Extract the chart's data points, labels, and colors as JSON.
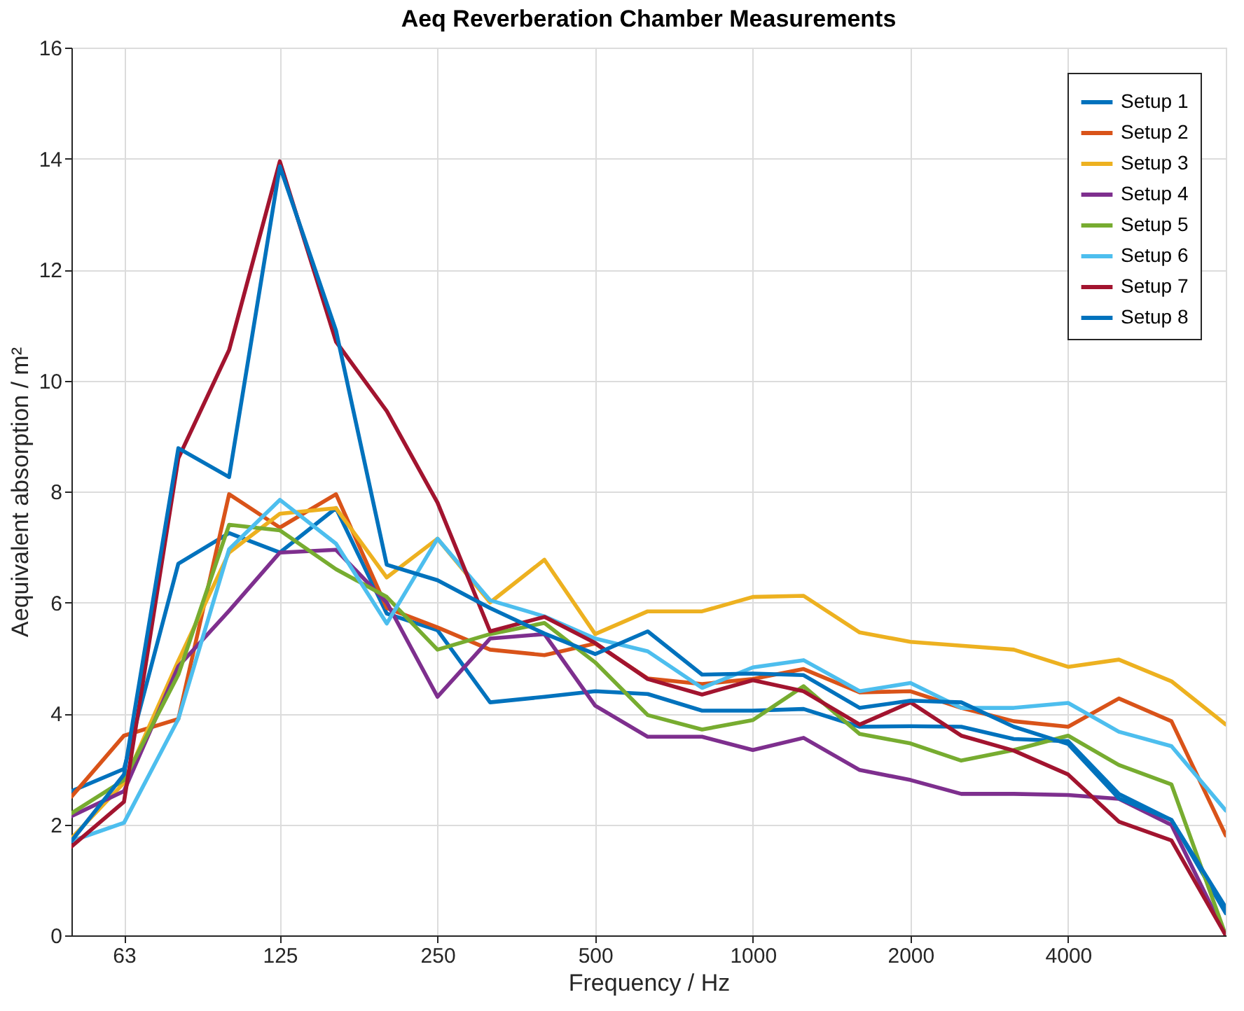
{
  "chart_data": {
    "type": "line",
    "title": "Aeq Reverberation Chamber Measurements",
    "xlabel": "Frequency / Hz",
    "ylabel": "Aequivalent absorption / m²",
    "x": [
      50,
      63,
      80,
      100,
      125,
      160,
      200,
      250,
      315,
      400,
      500,
      630,
      800,
      1000,
      1250,
      1600,
      2000,
      2500,
      3150,
      4000,
      5000,
      6300,
      8000
    ],
    "series": [
      {
        "name": "Setup 1",
        "color": "#0072bd",
        "values": [
          2.6,
          3.0,
          6.7,
          7.25,
          6.9,
          7.7,
          5.8,
          5.5,
          4.2,
          4.3,
          4.4,
          4.35,
          4.05,
          4.05,
          4.08,
          3.76,
          3.77,
          3.76,
          3.54,
          3.5,
          2.55,
          2.08,
          0.4
        ]
      },
      {
        "name": "Setup 2",
        "color": "#d95319",
        "values": [
          2.5,
          3.6,
          3.9,
          7.95,
          7.35,
          7.95,
          5.9,
          5.55,
          5.15,
          5.05,
          5.26,
          4.63,
          4.53,
          4.62,
          4.8,
          4.38,
          4.4,
          4.1,
          3.86,
          3.76,
          4.27,
          3.86,
          1.8
        ]
      },
      {
        "name": "Setup 3",
        "color": "#edb120",
        "values": [
          1.75,
          2.75,
          4.95,
          6.9,
          7.6,
          7.7,
          6.45,
          7.15,
          6.0,
          6.77,
          5.43,
          5.84,
          5.84,
          6.1,
          6.12,
          5.46,
          5.29,
          5.22,
          5.15,
          4.84,
          4.97,
          4.58,
          3.8
        ]
      },
      {
        "name": "Setup 4",
        "color": "#7e2f8e",
        "values": [
          2.15,
          2.6,
          4.85,
          5.85,
          6.9,
          6.95,
          6.0,
          4.3,
          5.35,
          5.43,
          4.14,
          3.58,
          3.58,
          3.34,
          3.56,
          2.98,
          2.8,
          2.55,
          2.55,
          2.53,
          2.46,
          1.99,
          0
        ]
      },
      {
        "name": "Setup 5",
        "color": "#77ac30",
        "values": [
          2.2,
          2.8,
          4.7,
          7.4,
          7.3,
          6.6,
          6.1,
          5.15,
          5.43,
          5.63,
          4.92,
          3.97,
          3.71,
          3.88,
          4.49,
          3.63,
          3.46,
          3.15,
          3.34,
          3.6,
          3.07,
          2.72,
          0
        ]
      },
      {
        "name": "Setup 6",
        "color": "#4dbeee",
        "values": [
          1.7,
          2.03,
          3.9,
          6.96,
          7.85,
          7.06,
          5.62,
          7.15,
          6.04,
          5.75,
          5.35,
          5.12,
          4.46,
          4.83,
          4.96,
          4.4,
          4.55,
          4.1,
          4.1,
          4.19,
          3.67,
          3.41,
          2.25
        ]
      },
      {
        "name": "Setup 7",
        "color": "#a2142f",
        "values": [
          1.6,
          2.41,
          8.6,
          10.55,
          13.95,
          10.7,
          9.45,
          7.8,
          5.48,
          5.74,
          5.27,
          4.62,
          4.34,
          4.6,
          4.4,
          3.8,
          4.2,
          3.6,
          3.33,
          2.9,
          2.05,
          1.71,
          0
        ]
      },
      {
        "name": "Setup 8",
        "color": "#0072bd",
        "values": [
          1.7,
          2.9,
          8.78,
          8.26,
          13.86,
          10.9,
          6.68,
          6.4,
          5.9,
          5.44,
          5.07,
          5.48,
          4.7,
          4.72,
          4.69,
          4.1,
          4.23,
          4.2,
          3.76,
          3.45,
          2.47,
          2.08,
          0.5
        ]
      }
    ],
    "log": "x",
    "xlim": [
      50,
      8000
    ],
    "xticks": [
      63,
      125,
      250,
      500,
      1000,
      2000,
      4000
    ],
    "ylim": [
      0,
      16
    ],
    "yticks": [
      0,
      2,
      4,
      6,
      8,
      10,
      12,
      14,
      16
    ],
    "grid": true,
    "legend": "top right",
    "marker": "none",
    "line_style": "solid"
  }
}
